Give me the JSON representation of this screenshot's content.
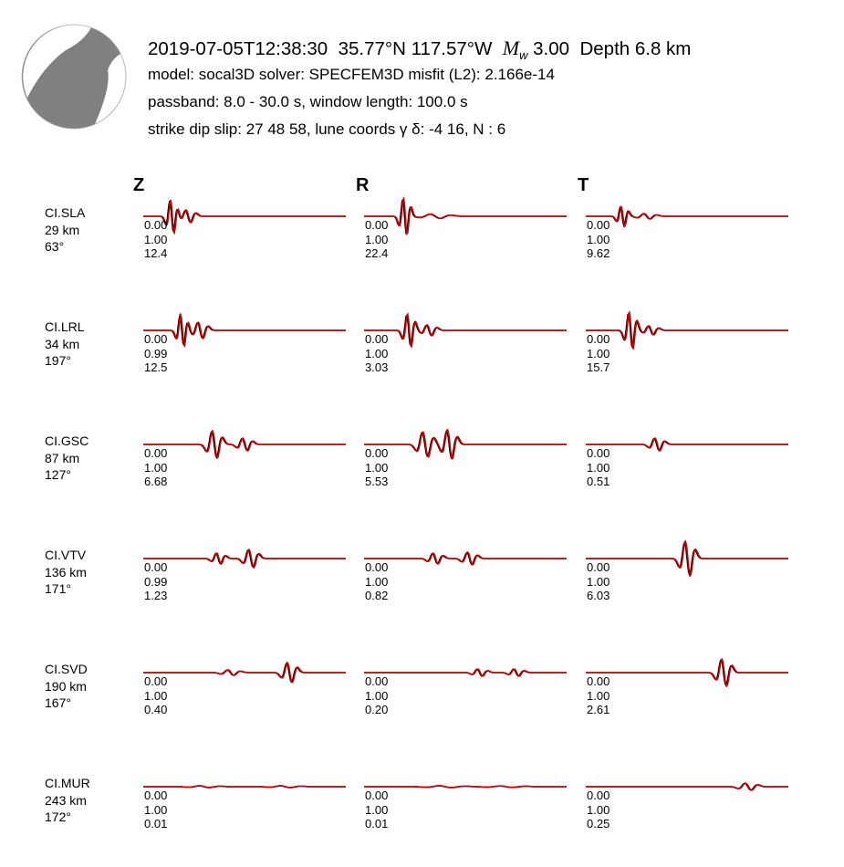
{
  "header": {
    "origin": "2019-07-05T12:38:30",
    "location": "35.77°N 117.57°W",
    "mw_symbol": "M",
    "mw_subscript": "w",
    "mw_value": "3.00",
    "depth": "Depth 6.8 km",
    "line2": "model: socal3D   solver: SPECFEM3D   misfit (L2): 2.166e-14",
    "line3": "passband: 8.0 - 30.0 s,  window length: 100.0 s",
    "line4": "strike  dip  slip:  27  48  58,   lune coords γ  δ:  -4  16,   N : 6"
  },
  "components": [
    "Z",
    "R",
    "T"
  ],
  "colors": {
    "observed": "#000000",
    "synthetic": "#d40000",
    "beachball_fill": "#808080",
    "beachball_edge": "#aaaaaa"
  },
  "chart_data": {
    "type": "line",
    "description_series": [
      "observed (black)",
      "synthetic (red)"
    ],
    "stations": [
      {
        "name": "CI.SLA",
        "distance": "29 km",
        "azimuth": "63°",
        "traces": [
          {
            "component": "Z",
            "labels": [
              "0.00",
              "1.00",
              "12.4"
            ],
            "wavelets": [
              [
                0.14,
                0.9,
                0.015
              ],
              [
                0.22,
                0.35,
                0.02
              ]
            ]
          },
          {
            "component": "R",
            "labels": [
              "0.00",
              "1.00",
              "22.4"
            ],
            "wavelets": [
              [
                0.2,
                1.0,
                0.015
              ],
              [
                0.35,
                0.12,
                0.04
              ]
            ]
          },
          {
            "component": "T",
            "labels": [
              "0.00",
              "1.00",
              "9.62"
            ],
            "wavelets": [
              [
                0.18,
                0.55,
                0.015
              ],
              [
                0.3,
                0.15,
                0.025
              ]
            ]
          }
        ]
      },
      {
        "name": "CI.LRL",
        "distance": "34 km",
        "azimuth": "197°",
        "traces": [
          {
            "component": "Z",
            "labels": [
              "0.00",
              "0.99",
              "12.5"
            ],
            "wavelets": [
              [
                0.19,
                0.85,
                0.015
              ],
              [
                0.28,
                0.45,
                0.02
              ]
            ]
          },
          {
            "component": "R",
            "labels": [
              "0.00",
              "1.00",
              "3.03"
            ],
            "wavelets": [
              [
                0.22,
                0.9,
                0.016
              ],
              [
                0.32,
                0.3,
                0.02
              ]
            ]
          },
          {
            "component": "T",
            "labels": [
              "0.00",
              "1.00",
              "15.7"
            ],
            "wavelets": [
              [
                0.22,
                1.0,
                0.016
              ],
              [
                0.32,
                0.25,
                0.02
              ]
            ]
          }
        ]
      },
      {
        "name": "CI.GSC",
        "distance": "87 km",
        "azimuth": "127°",
        "traces": [
          {
            "component": "Z",
            "labels": [
              "0.00",
              "1.00",
              "6.68"
            ],
            "wavelets": [
              [
                0.35,
                0.75,
                0.02
              ],
              [
                0.5,
                0.35,
                0.02
              ]
            ]
          },
          {
            "component": "R",
            "labels": [
              "0.00",
              "1.00",
              "5.53"
            ],
            "wavelets": [
              [
                0.3,
                0.7,
                0.022
              ],
              [
                0.42,
                0.8,
                0.02
              ]
            ]
          },
          {
            "component": "T",
            "labels": [
              "0.00",
              "1.00",
              "0.51"
            ],
            "wavelets": [
              [
                0.35,
                0.35,
                0.02
              ]
            ]
          }
        ]
      },
      {
        "name": "CI.VTV",
        "distance": "136 km",
        "azimuth": "171°",
        "traces": [
          {
            "component": "Z",
            "labels": [
              "0.00",
              "0.99",
              "1.23"
            ],
            "wavelets": [
              [
                0.37,
                0.3,
                0.018
              ],
              [
                0.53,
                0.5,
                0.02
              ]
            ]
          },
          {
            "component": "R",
            "labels": [
              "0.00",
              "1.00",
              "0.82"
            ],
            "wavelets": [
              [
                0.35,
                0.3,
                0.02
              ],
              [
                0.52,
                0.35,
                0.02
              ]
            ]
          },
          {
            "component": "T",
            "labels": [
              "0.00",
              "1.00",
              "6.03"
            ],
            "wavelets": [
              [
                0.5,
                0.95,
                0.02
              ]
            ]
          }
        ]
      },
      {
        "name": "CI.SVD",
        "distance": "190 km",
        "azimuth": "167°",
        "traces": [
          {
            "component": "Z",
            "labels": [
              "0.00",
              "1.00",
              "0.40"
            ],
            "wavelets": [
              [
                0.43,
                0.15,
                0.025
              ],
              [
                0.72,
                0.55,
                0.02
              ]
            ]
          },
          {
            "component": "R",
            "labels": [
              "0.00",
              "1.00",
              "0.20"
            ],
            "wavelets": [
              [
                0.57,
                0.2,
                0.02
              ],
              [
                0.75,
                0.2,
                0.02
              ]
            ]
          },
          {
            "component": "T",
            "labels": [
              "0.00",
              "1.00",
              "2.61"
            ],
            "wavelets": [
              [
                0.68,
                0.75,
                0.02
              ]
            ]
          }
        ]
      },
      {
        "name": "CI.MUR",
        "distance": "243 km",
        "azimuth": "172°",
        "traces": [
          {
            "component": "Z",
            "labels": [
              "0.00",
              "1.00",
              "0.01"
            ],
            "wavelets": [
              [
                0.3,
                0.05,
                0.04
              ],
              [
                0.7,
                0.05,
                0.04
              ]
            ]
          },
          {
            "component": "R",
            "labels": [
              "0.00",
              "1.00",
              "0.01"
            ],
            "wavelets": [
              [
                0.4,
                0.05,
                0.05
              ],
              [
                0.7,
                0.04,
                0.05
              ]
            ]
          },
          {
            "component": "T",
            "labels": [
              "0.00",
              "1.00",
              "0.25"
            ],
            "wavelets": [
              [
                0.8,
                0.2,
                0.025
              ]
            ]
          }
        ]
      }
    ]
  }
}
